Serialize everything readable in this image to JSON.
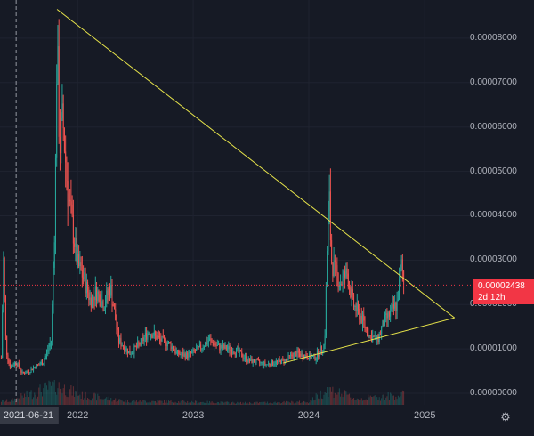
{
  "chart_data": {
    "type": "candlestick",
    "y_axis": {
      "ticks": [
        "0.00008000",
        "0.00007000",
        "0.00006000",
        "0.00005000",
        "0.00004000",
        "0.00003000",
        "0.00002000",
        "0.00001000",
        "0.00000000"
      ],
      "tick_values": [
        8e-05,
        7e-05,
        6e-05,
        5e-05,
        4e-05,
        3e-05,
        2e-05,
        1e-05,
        0.0
      ],
      "range": [
        0.0,
        8.7e-05
      ]
    },
    "x_axis": {
      "ticks": [
        "2022",
        "2023",
        "2024",
        "2025"
      ],
      "tick_dates": [
        "2022-01-01",
        "2023-01-01",
        "2024-01-01",
        "2025-01-01"
      ],
      "range": [
        "2021-05-01",
        "2025-06-01"
      ]
    },
    "crosshair_date_label": "2021-06-21",
    "crosshair_date": "2021-06-21",
    "last_price": "0.00002438",
    "last_price_value": 2.438e-05,
    "countdown": "2d 12h",
    "price_path": [
      [
        "2021-05-05",
        8e-06
      ],
      [
        "2021-05-12",
        3e-05
      ],
      [
        "2021-05-20",
        1e-05
      ],
      [
        "2021-06-01",
        6e-06
      ],
      [
        "2021-06-21",
        7e-06
      ],
      [
        "2021-07-10",
        4.5e-06
      ],
      [
        "2021-08-01",
        5e-06
      ],
      [
        "2021-08-20",
        6e-06
      ],
      [
        "2021-09-15",
        7e-06
      ],
      [
        "2021-10-10",
        1.2e-05
      ],
      [
        "2021-10-22",
        4.2e-05
      ],
      [
        "2021-10-28",
        8e-05
      ],
      [
        "2021-11-05",
        5.5e-05
      ],
      [
        "2021-11-15",
        6.2e-05
      ],
      [
        "2021-12-01",
        4.5e-05
      ],
      [
        "2021-12-15",
        3.8e-05
      ],
      [
        "2022-01-01",
        2.9e-05
      ],
      [
        "2022-01-20",
        2.6e-05
      ],
      [
        "2022-02-10",
        2.1e-05
      ],
      [
        "2022-03-01",
        2.3e-05
      ],
      [
        "2022-03-25",
        2e-05
      ],
      [
        "2022-04-15",
        2.4e-05
      ],
      [
        "2022-05-10",
        1.2e-05
      ],
      [
        "2022-06-15",
        9e-06
      ],
      [
        "2022-07-15",
        1.1e-05
      ],
      [
        "2022-08-15",
        1.4e-05
      ],
      [
        "2022-09-20",
        1.2e-05
      ],
      [
        "2022-10-20",
        1.1e-05
      ],
      [
        "2022-11-10",
        9e-06
      ],
      [
        "2022-12-15",
        8.5e-06
      ],
      [
        "2023-01-20",
        1e-05
      ],
      [
        "2023-02-20",
        1.2e-05
      ],
      [
        "2023-03-20",
        1.05e-05
      ],
      [
        "2023-04-20",
        1e-05
      ],
      [
        "2023-05-20",
        9.5e-06
      ],
      [
        "2023-06-20",
        7.5e-06
      ],
      [
        "2023-07-20",
        7e-06
      ],
      [
        "2023-08-20",
        6.5e-06
      ],
      [
        "2023-09-20",
        7e-06
      ],
      [
        "2023-10-20",
        7.5e-06
      ],
      [
        "2023-11-20",
        9e-06
      ],
      [
        "2023-12-20",
        8.5e-06
      ],
      [
        "2024-01-20",
        8e-06
      ],
      [
        "2024-02-20",
        1.1e-05
      ],
      [
        "2024-02-27",
        3e-05
      ],
      [
        "2024-03-05",
        4.5e-05
      ],
      [
        "2024-03-12",
        3e-05
      ],
      [
        "2024-03-25",
        2.7e-05
      ],
      [
        "2024-04-10",
        2.5e-05
      ],
      [
        "2024-05-01",
        2.7e-05
      ],
      [
        "2024-05-20",
        2e-05
      ],
      [
        "2024-06-15",
        1.7e-05
      ],
      [
        "2024-07-10",
        1.3e-05
      ],
      [
        "2024-08-05",
        1.2e-05
      ],
      [
        "2024-08-25",
        1.6e-05
      ],
      [
        "2024-09-15",
        1.8e-05
      ],
      [
        "2024-10-05",
        2e-05
      ],
      [
        "2024-10-20",
        2.9e-05
      ],
      [
        "2024-10-28",
        2.438e-05
      ]
    ],
    "volume_path": [
      [
        "2021-06-01",
        0.2
      ],
      [
        "2021-10-25",
        1.0
      ],
      [
        "2022-01-10",
        0.5
      ],
      [
        "2022-06-01",
        0.2
      ],
      [
        "2023-01-01",
        0.15
      ],
      [
        "2023-06-01",
        0.1
      ],
      [
        "2024-01-01",
        0.15
      ],
      [
        "2024-03-01",
        0.8
      ],
      [
        "2024-06-01",
        0.3
      ],
      [
        "2024-10-20",
        0.5
      ]
    ],
    "trendlines": [
      {
        "from": [
          "2021-10-28",
          8.65e-05
        ],
        "to": [
          "2025-04-05",
          1.7e-05
        ]
      },
      {
        "from": [
          "2023-10-12",
          6.8e-06
        ],
        "to": [
          "2025-04-05",
          1.7e-05
        ]
      }
    ],
    "colors": {
      "background": "#161a25",
      "up": "#26a69a",
      "down": "#ef5350",
      "trendline": "#e6e34a",
      "grid": "#1f2330",
      "last_price_line": "#f23645",
      "axis_text": "#b2b5be"
    },
    "grid": true
  },
  "ui": {
    "settings_icon": "gear-icon"
  }
}
